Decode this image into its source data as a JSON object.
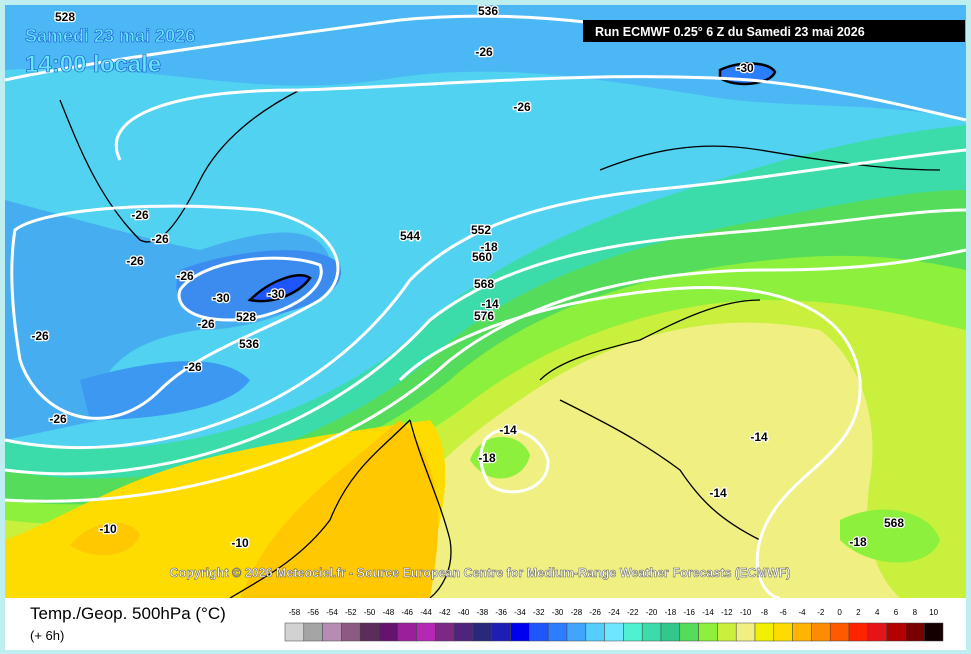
{
  "header": {
    "date": "Samedi 23 mai 2026",
    "time": "14:00 locale",
    "run": "Run ECMWF 0.25° 6 Z du Samedi 23 mai 2026"
  },
  "copyright": "Copyright © 2026 Meteociel.fr - Source European Centre for Medium-Range Weather Forecasts (ECMWF)",
  "legend": {
    "title": "Temp./Geop. 500hPa (°C)",
    "subtitle": "(+ 6h)",
    "scale": [
      {
        "value": -58,
        "color": "#d2d2d2"
      },
      {
        "value": -56,
        "color": "#a5a5a5"
      },
      {
        "value": -54,
        "color": "#b48cb4"
      },
      {
        "value": -52,
        "color": "#8c5a82"
      },
      {
        "value": -50,
        "color": "#5a2d5a"
      },
      {
        "value": -48,
        "color": "#64146e"
      },
      {
        "value": -46,
        "color": "#9b1e9b"
      },
      {
        "value": -44,
        "color": "#b428b4"
      },
      {
        "value": -42,
        "color": "#7d2882"
      },
      {
        "value": -40,
        "color": "#50237d"
      },
      {
        "value": -38,
        "color": "#28287d"
      },
      {
        "value": -36,
        "color": "#1e1eb4"
      },
      {
        "value": -34,
        "color": "#0000f0"
      },
      {
        "value": -32,
        "color": "#1e55ff"
      },
      {
        "value": -30,
        "color": "#2d7dff"
      },
      {
        "value": -28,
        "color": "#41a5ff"
      },
      {
        "value": -26,
        "color": "#55cdff"
      },
      {
        "value": -24,
        "color": "#6ee6ff"
      },
      {
        "value": -22,
        "color": "#50f0d2"
      },
      {
        "value": -20,
        "color": "#3cdcaa"
      },
      {
        "value": -18,
        "color": "#32c88c"
      },
      {
        "value": -16,
        "color": "#55dc5a"
      },
      {
        "value": -14,
        "color": "#8cf03c"
      },
      {
        "value": -12,
        "color": "#c8f03c"
      },
      {
        "value": -10,
        "color": "#f0f082"
      },
      {
        "value": -8,
        "color": "#f0f000"
      },
      {
        "value": -6,
        "color": "#ffdc00"
      },
      {
        "value": -4,
        "color": "#ffb400"
      },
      {
        "value": -2,
        "color": "#ff8c00"
      },
      {
        "value": 0,
        "color": "#ff5a00"
      },
      {
        "value": 2,
        "color": "#ff2300"
      },
      {
        "value": 4,
        "color": "#e61414"
      },
      {
        "value": 6,
        "color": "#b40000"
      },
      {
        "value": 8,
        "color": "#780000"
      },
      {
        "value": 10,
        "color": "#140000"
      }
    ]
  },
  "map_labels": [
    "528",
    "536",
    "-26",
    "-30",
    "-26",
    "-26",
    "-26",
    "-26",
    "-26",
    "-30",
    "-30",
    "528",
    "-26",
    "536",
    "-26",
    "-26",
    "-26",
    "544",
    "552",
    "-18",
    "560",
    "568",
    "-14",
    "576",
    "-14",
    "-18",
    "-14",
    "-14",
    "568",
    "-18",
    "-10",
    "-10"
  ]
}
